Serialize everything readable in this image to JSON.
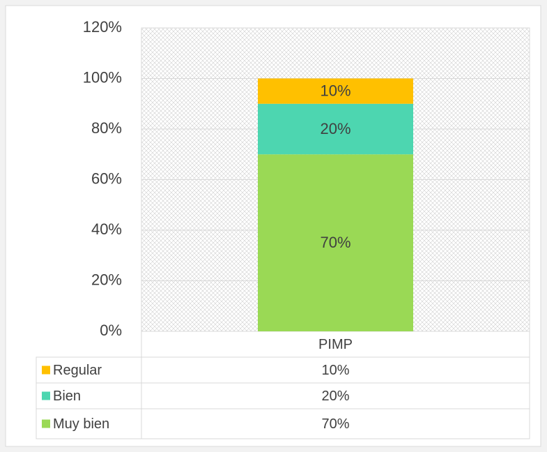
{
  "chart_data": {
    "type": "stacked_bar",
    "categories": [
      "PIMP"
    ],
    "series": [
      {
        "name": "Muy bien",
        "color": "#9ad955",
        "values": [
          70
        ],
        "value_labels": [
          "70%"
        ]
      },
      {
        "name": "Bien",
        "color": "#4dd6b0",
        "values": [
          20
        ],
        "value_labels": [
          "20%"
        ]
      },
      {
        "name": "Regular",
        "color": "#ffc000",
        "values": [
          10
        ],
        "value_labels": [
          "10%"
        ]
      }
    ],
    "ylim": [
      0,
      120
    ],
    "yticks": [
      {
        "value": 0,
        "label": "0%"
      },
      {
        "value": 20,
        "label": "20%"
      },
      {
        "value": 40,
        "label": "40%"
      },
      {
        "value": 60,
        "label": "60%"
      },
      {
        "value": 80,
        "label": "80%"
      },
      {
        "value": 100,
        "label": "100%"
      },
      {
        "value": 120,
        "label": "120%"
      }
    ],
    "grid": true,
    "data_table": true
  }
}
